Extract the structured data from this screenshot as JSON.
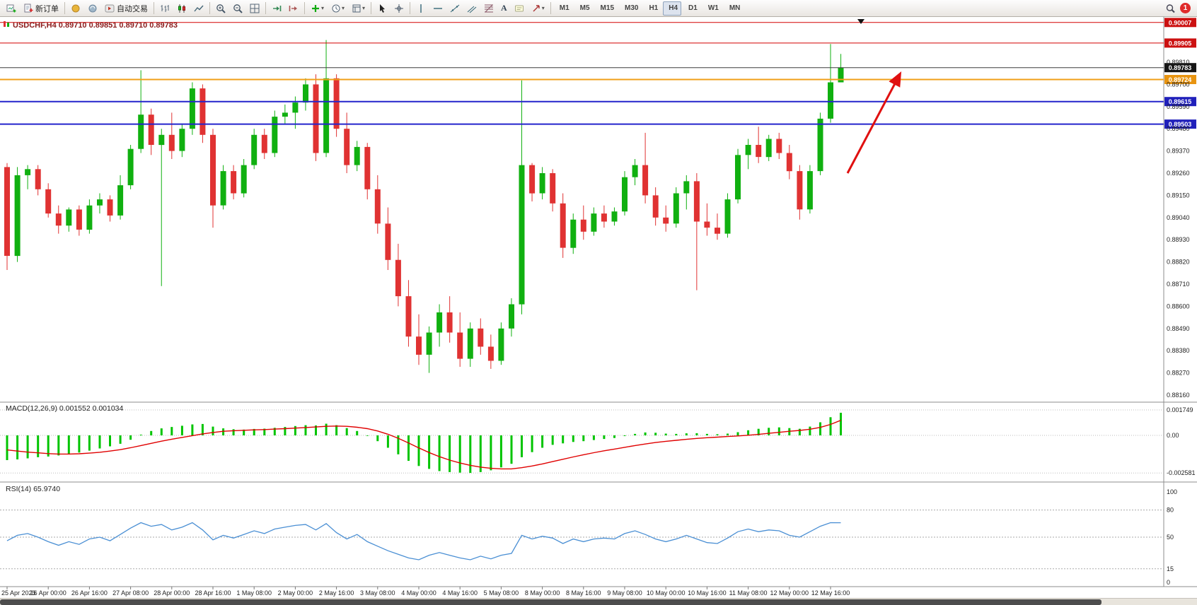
{
  "colors": {
    "bull": "#10b010",
    "bear": "#e03232",
    "macd_hist": "#00c400",
    "macd_signal": "#e00000",
    "rsi_line": "#4a8fd4",
    "accent_resistance": "#d40000",
    "accent_support": "#2424cc",
    "accent_pivot": "#f0a018",
    "arrow": "#e01010"
  },
  "toolbar": {
    "groups": [
      {
        "name": "file",
        "items": [
          {
            "name": "new-chart",
            "icon": "newchart"
          },
          {
            "name": "new-order",
            "icon": "neworder",
            "label": "新订单"
          }
        ]
      },
      {
        "name": "services",
        "items": [
          {
            "name": "mql5-community",
            "icon": "community"
          },
          {
            "name": "virtual-hosting",
            "icon": "hosting"
          },
          {
            "name": "auto-trading",
            "icon": "autotrade",
            "label": "自动交易"
          }
        ]
      },
      {
        "name": "chart-modes",
        "items": [
          {
            "name": "bar-chart-mode",
            "icon": "bars"
          },
          {
            "name": "candlestick-mode",
            "icon": "candles"
          },
          {
            "name": "line-chart-mode",
            "icon": "linechart"
          }
        ]
      },
      {
        "name": "zoom",
        "items": [
          {
            "name": "zoom-in",
            "icon": "zoomin"
          },
          {
            "name": "zoom-out",
            "icon": "zoomout"
          },
          {
            "name": "tile-windows",
            "icon": "tile"
          }
        ]
      },
      {
        "name": "scroll",
        "items": [
          {
            "name": "auto-scroll",
            "icon": "autoscroll"
          },
          {
            "name": "chart-shift",
            "icon": "shift"
          }
        ]
      },
      {
        "name": "object-menus",
        "items": [
          {
            "name": "indicators",
            "icon": "indicators",
            "dropdown": true
          },
          {
            "name": "periods",
            "icon": "clock",
            "dropdown": true
          },
          {
            "name": "templates",
            "icon": "template",
            "dropdown": true
          }
        ]
      },
      {
        "name": "pointer",
        "items": [
          {
            "name": "cursor",
            "icon": "cursor"
          },
          {
            "name": "crosshair",
            "icon": "crosshair"
          }
        ]
      },
      {
        "name": "draw-tools",
        "items": [
          {
            "name": "vertical-line-tool",
            "icon": "vline"
          },
          {
            "name": "horizontal-line-tool",
            "icon": "hline"
          },
          {
            "name": "trendline-tool",
            "icon": "trend"
          },
          {
            "name": "channel-tool",
            "icon": "channel"
          },
          {
            "name": "fibonacci-tool",
            "icon": "fibo"
          },
          {
            "name": "text-tool",
            "glyph": "A"
          },
          {
            "name": "text-label-tool",
            "icon": "label"
          },
          {
            "name": "arrow-tools",
            "icon": "arrows",
            "dropdown": true
          }
        ]
      },
      {
        "name": "timeframes",
        "items": [
          {
            "name": "tf-m1",
            "label": "M1"
          },
          {
            "name": "tf-m5",
            "label": "M5"
          },
          {
            "name": "tf-m15",
            "label": "M15"
          },
          {
            "name": "tf-m30",
            "label": "M30"
          },
          {
            "name": "tf-h1",
            "label": "H1"
          },
          {
            "name": "tf-h4",
            "label": "H4",
            "active": true
          },
          {
            "name": "tf-d1",
            "label": "D1"
          },
          {
            "name": "tf-w1",
            "label": "W1"
          },
          {
            "name": "tf-mn",
            "label": "MN"
          }
        ]
      }
    ],
    "right": {
      "items": [
        {
          "name": "search",
          "icon": "search"
        },
        {
          "name": "notifications",
          "badge": "1"
        }
      ]
    }
  },
  "chart": {
    "title": "USDCHF,H4 0.89710 0.89851 0.89710 0.89783"
  },
  "chart_data": {
    "type": "candlestick",
    "symbol": "USDCHF",
    "timeframe": "H4",
    "ohlc_current": {
      "open": "0.89710",
      "high": "0.89851",
      "low": "0.89710",
      "close": "0.89783"
    },
    "price_range": [
      0.8816,
      0.9001
    ],
    "grid": false,
    "candles": [
      [
        0.8929,
        0.8931,
        0.8878,
        0.8885
      ],
      [
        0.8885,
        0.8929,
        0.8882,
        0.8925
      ],
      [
        0.8925,
        0.893,
        0.8918,
        0.8928
      ],
      [
        0.8928,
        0.893,
        0.8915,
        0.8918
      ],
      [
        0.8918,
        0.8921,
        0.8904,
        0.8906
      ],
      [
        0.8906,
        0.891,
        0.8896,
        0.89
      ],
      [
        0.89,
        0.8909,
        0.8897,
        0.8908
      ],
      [
        0.8908,
        0.891,
        0.8895,
        0.8898
      ],
      [
        0.8898,
        0.8913,
        0.8896,
        0.891
      ],
      [
        0.891,
        0.8916,
        0.8906,
        0.8913
      ],
      [
        0.8913,
        0.8915,
        0.8902,
        0.8905
      ],
      [
        0.8905,
        0.8925,
        0.8903,
        0.892
      ],
      [
        0.892,
        0.894,
        0.8918,
        0.8938
      ],
      [
        0.8938,
        0.8977,
        0.8936,
        0.8955
      ],
      [
        0.8955,
        0.8958,
        0.8935,
        0.894
      ],
      [
        0.894,
        0.8948,
        0.887,
        0.8945
      ],
      [
        0.8945,
        0.8956,
        0.8933,
        0.8937
      ],
      [
        0.8937,
        0.895,
        0.8934,
        0.8948
      ],
      [
        0.8948,
        0.8971,
        0.8945,
        0.8968
      ],
      [
        0.8968,
        0.897,
        0.8941,
        0.8945
      ],
      [
        0.8945,
        0.8948,
        0.8899,
        0.891
      ],
      [
        0.891,
        0.893,
        0.8908,
        0.8927
      ],
      [
        0.8927,
        0.893,
        0.8913,
        0.8916
      ],
      [
        0.8916,
        0.8933,
        0.8914,
        0.893
      ],
      [
        0.893,
        0.8948,
        0.8928,
        0.8945
      ],
      [
        0.8945,
        0.8948,
        0.8933,
        0.8936
      ],
      [
        0.8936,
        0.8957,
        0.8934,
        0.8954
      ],
      [
        0.8954,
        0.896,
        0.895,
        0.8956
      ],
      [
        0.8956,
        0.8964,
        0.8948,
        0.8961
      ],
      [
        0.8961,
        0.8973,
        0.8957,
        0.897
      ],
      [
        0.897,
        0.8975,
        0.8932,
        0.8936
      ],
      [
        0.8936,
        0.8992,
        0.8934,
        0.8973
      ],
      [
        0.8973,
        0.8975,
        0.8944,
        0.8948
      ],
      [
        0.8948,
        0.8956,
        0.8926,
        0.893
      ],
      [
        0.893,
        0.8942,
        0.8927,
        0.8939
      ],
      [
        0.8939,
        0.8941,
        0.8913,
        0.8918
      ],
      [
        0.8918,
        0.8925,
        0.8896,
        0.8901
      ],
      [
        0.8901,
        0.8909,
        0.8878,
        0.8883
      ],
      [
        0.8883,
        0.8891,
        0.886,
        0.8865
      ],
      [
        0.8865,
        0.8873,
        0.884,
        0.8845
      ],
      [
        0.8845,
        0.8856,
        0.8831,
        0.8836
      ],
      [
        0.8836,
        0.885,
        0.8827,
        0.8847
      ],
      [
        0.8847,
        0.8861,
        0.884,
        0.8857
      ],
      [
        0.8857,
        0.8865,
        0.8842,
        0.8847
      ],
      [
        0.8847,
        0.8857,
        0.883,
        0.8834
      ],
      [
        0.8834,
        0.8852,
        0.883,
        0.8849
      ],
      [
        0.8849,
        0.8854,
        0.8836,
        0.884
      ],
      [
        0.884,
        0.8846,
        0.8829,
        0.8833
      ],
      [
        0.8833,
        0.8852,
        0.8831,
        0.8849
      ],
      [
        0.8849,
        0.8864,
        0.8845,
        0.8861
      ],
      [
        0.8861,
        0.8972,
        0.8856,
        0.893
      ],
      [
        0.893,
        0.8931,
        0.8912,
        0.8916
      ],
      [
        0.8916,
        0.8929,
        0.8913,
        0.8926
      ],
      [
        0.8926,
        0.8928,
        0.8907,
        0.8911
      ],
      [
        0.8911,
        0.8916,
        0.8884,
        0.8889
      ],
      [
        0.8889,
        0.8906,
        0.8886,
        0.8903
      ],
      [
        0.8903,
        0.891,
        0.8893,
        0.8897
      ],
      [
        0.8897,
        0.8909,
        0.8895,
        0.8906
      ],
      [
        0.8906,
        0.891,
        0.8899,
        0.8902
      ],
      [
        0.8902,
        0.8909,
        0.89,
        0.8907
      ],
      [
        0.8907,
        0.8927,
        0.8905,
        0.8924
      ],
      [
        0.8924,
        0.8933,
        0.892,
        0.893
      ],
      [
        0.893,
        0.8946,
        0.8911,
        0.8915
      ],
      [
        0.8915,
        0.8919,
        0.89,
        0.8904
      ],
      [
        0.8904,
        0.891,
        0.8897,
        0.8901
      ],
      [
        0.8901,
        0.8919,
        0.8899,
        0.8916
      ],
      [
        0.8916,
        0.8925,
        0.8908,
        0.8922
      ],
      [
        0.8922,
        0.8926,
        0.8868,
        0.8902
      ],
      [
        0.8902,
        0.8911,
        0.8895,
        0.8899
      ],
      [
        0.8899,
        0.8906,
        0.8893,
        0.8896
      ],
      [
        0.8896,
        0.8916,
        0.8894,
        0.8913
      ],
      [
        0.8913,
        0.8938,
        0.8911,
        0.8935
      ],
      [
        0.8935,
        0.8943,
        0.8928,
        0.894
      ],
      [
        0.894,
        0.8949,
        0.8931,
        0.8934
      ],
      [
        0.8934,
        0.8945,
        0.8932,
        0.8943
      ],
      [
        0.8943,
        0.8946,
        0.8933,
        0.8936
      ],
      [
        0.8936,
        0.894,
        0.8923,
        0.8927
      ],
      [
        0.8927,
        0.893,
        0.8903,
        0.8908
      ],
      [
        0.8908,
        0.893,
        0.8906,
        0.8927
      ],
      [
        0.8927,
        0.8956,
        0.8925,
        0.8953
      ],
      [
        0.8953,
        0.899,
        0.8951,
        0.8971
      ],
      [
        0.8971,
        0.89851,
        0.8971,
        0.89783
      ]
    ],
    "price_axis": {
      "labels": [
        "0.89810",
        "0.89700",
        "0.89590",
        "0.89480",
        "0.89370",
        "0.89260",
        "0.89150",
        "0.89040",
        "0.88930",
        "0.88820",
        "0.88710",
        "0.88600",
        "0.88490",
        "0.88380",
        "0.88270",
        "0.88160"
      ]
    },
    "hlines": [
      {
        "name": "resistance-line-1",
        "price": 0.90007,
        "label": "0.90007",
        "color": "#d40000",
        "width": 1,
        "badge_bg": "#cc1111"
      },
      {
        "name": "resistance-line-2",
        "price": 0.89905,
        "label": "0.89905",
        "color": "#d40000",
        "width": 1,
        "badge_bg": "#cc1111"
      },
      {
        "name": "current-price-line",
        "price": 0.89783,
        "label": "0.89783",
        "color": "#3c3c3c",
        "width": 1,
        "badge_bg": "#151515"
      },
      {
        "name": "pivot-line",
        "price": 0.89724,
        "label": "0.89724",
        "color": "#f0a018",
        "width": 2,
        "badge_bg": "#e89410"
      },
      {
        "name": "support-line-1",
        "price": 0.89615,
        "label": "0.89615",
        "color": "#2424cc",
        "width": 2,
        "badge_bg": "#2020bb"
      },
      {
        "name": "support-line-2",
        "price": 0.89503,
        "label": "0.89503",
        "color": "#2424cc",
        "width": 2,
        "badge_bg": "#2020bb"
      }
    ],
    "x_axis": {
      "labels": [
        "25 Apr 2023",
        "26 Apr 00:00",
        "26 Apr 16:00",
        "27 Apr 08:00",
        "28 Apr 00:00",
        "28 Apr 16:00",
        "1 May 08:00",
        "2 May 00:00",
        "2 May 16:00",
        "3 May 08:00",
        "4 May 00:00",
        "4 May 16:00",
        "5 May 08:00",
        "8 May 00:00",
        "8 May 16:00",
        "9 May 08:00",
        "10 May 00:00",
        "10 May 16:00",
        "11 May 08:00",
        "12 May 00:00",
        "12 May 16:00"
      ]
    },
    "indicators": {
      "macd": {
        "label": "MACD(12,26,9) 0.001552 0.001034",
        "axis": [
          "0.001749",
          "0.00",
          "-0.002581"
        ],
        "hist": [
          -0.0017,
          -0.00165,
          -0.00158,
          -0.0015,
          -0.00145,
          -0.00138,
          -0.00128,
          -0.00118,
          -0.00105,
          -0.0009,
          -0.00075,
          -0.00058,
          -0.0003,
          5e-05,
          0.0003,
          0.00048,
          0.00058,
          0.00066,
          0.00075,
          0.00078,
          0.0006,
          0.00048,
          0.00042,
          0.0004,
          0.00044,
          0.00046,
          0.00052,
          0.00058,
          0.00064,
          0.0007,
          0.00068,
          0.0008,
          0.0007,
          0.0005,
          0.0003,
          0.0,
          -0.0004,
          -0.00085,
          -0.0013,
          -0.00175,
          -0.0021,
          -0.0023,
          -0.00245,
          -0.00252,
          -0.00256,
          -0.00258,
          -0.00252,
          -0.0024,
          -0.0022,
          -0.00195,
          -0.0015,
          -0.00115,
          -0.00085,
          -0.00065,
          -0.00055,
          -0.00045,
          -0.0004,
          -0.00032,
          -0.00025,
          -0.00018,
          -5e-05,
          0.0001,
          0.0002,
          0.00018,
          0.00012,
          0.0001,
          0.00014,
          0.00015,
          0.0001,
          8e-05,
          0.00012,
          0.00022,
          0.00035,
          0.00045,
          0.00052,
          0.00055,
          0.0005,
          0.00045,
          0.0006,
          0.0009,
          0.00125,
          0.001552
        ],
        "signal": [
          -0.001,
          -0.00108,
          -0.00115,
          -0.0012,
          -0.00125,
          -0.00128,
          -0.00128,
          -0.00126,
          -0.00122,
          -0.00116,
          -0.00108,
          -0.00098,
          -0.00085,
          -0.0007,
          -0.00055,
          -0.0004,
          -0.00026,
          -0.00014,
          -2e-05,
          0.0001,
          0.0002,
          0.00028,
          0.00032,
          0.00035,
          0.00038,
          0.0004,
          0.00043,
          0.00046,
          0.0005,
          0.00054,
          0.00058,
          0.00062,
          0.00064,
          0.00062,
          0.00056,
          0.00046,
          0.0003,
          8e-05,
          -0.0002,
          -0.00052,
          -0.00086,
          -0.00118,
          -0.00146,
          -0.0017,
          -0.0019,
          -0.00206,
          -0.00218,
          -0.00226,
          -0.0023,
          -0.0023,
          -0.00222,
          -0.0021,
          -0.00196,
          -0.0018,
          -0.00164,
          -0.00148,
          -0.00133,
          -0.00119,
          -0.00106,
          -0.00094,
          -0.00082,
          -0.0007,
          -0.00059,
          -0.00049,
          -0.00041,
          -0.00034,
          -0.00027,
          -0.00021,
          -0.00016,
          -0.00012,
          -8e-05,
          -4e-05,
          1e-05,
          7e-05,
          0.00014,
          0.00021,
          0.00028,
          0.00034,
          0.00042,
          0.00055,
          0.00075,
          0.001034
        ]
      },
      "rsi": {
        "label": "RSI(14) 65.9740",
        "axis": [
          "100",
          "80",
          "50",
          "15",
          "0"
        ],
        "levels": [
          80,
          50,
          15
        ],
        "values": [
          46,
          52,
          54,
          50,
          45,
          41,
          45,
          42,
          48,
          50,
          46,
          53,
          60,
          66,
          62,
          64,
          58,
          61,
          66,
          58,
          47,
          52,
          49,
          53,
          57,
          54,
          59,
          61,
          63,
          64,
          58,
          65,
          55,
          48,
          53,
          45,
          40,
          35,
          31,
          27,
          25,
          30,
          33,
          30,
          27,
          25,
          29,
          26,
          30,
          32,
          52,
          48,
          51,
          49,
          43,
          48,
          45,
          48,
          49,
          48,
          54,
          57,
          53,
          48,
          45,
          48,
          52,
          48,
          44,
          43,
          49,
          56,
          59,
          56,
          58,
          57,
          52,
          50,
          56,
          62,
          66,
          65.97
        ]
      }
    },
    "annotations": {
      "arrow": {
        "from": [
          1198,
          221
        ],
        "to": [
          1272,
          81
        ],
        "color": "#e01010"
      }
    }
  }
}
